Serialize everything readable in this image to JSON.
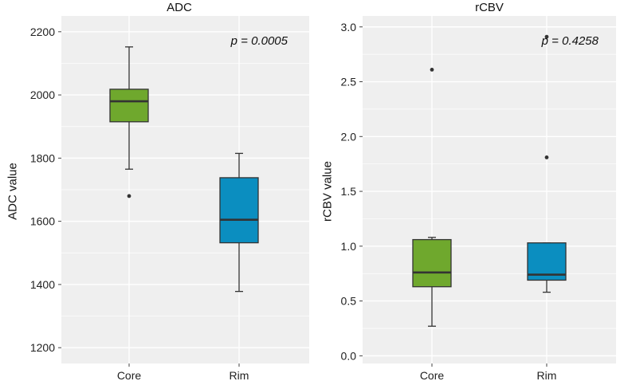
{
  "chart_data": [
    {
      "type": "box",
      "title": "ADC",
      "xlabel": "",
      "ylabel": "ADC value",
      "ylim": [
        1150,
        2250
      ],
      "yticks": [
        1200,
        1400,
        1600,
        1800,
        2000,
        2200
      ],
      "ytick_labels": [
        "1200",
        "1400",
        "1600",
        "1800",
        "2000",
        "2200"
      ],
      "categories": [
        "Core",
        "Rim"
      ],
      "annotation": "p = 0.0005",
      "boxes": [
        {
          "category": "Core",
          "whisker_low": 1765,
          "q1": 1915,
          "median": 1980,
          "q3": 2018,
          "whisker_high": 2152,
          "outliers": [
            1680
          ],
          "color": "#6fa82d"
        },
        {
          "category": "Rim",
          "whisker_low": 1378,
          "q1": 1532,
          "median": 1605,
          "q3": 1738,
          "whisker_high": 1815,
          "outliers": [],
          "color": "#0b8ec0"
        }
      ]
    },
    {
      "type": "box",
      "title": "rCBV",
      "xlabel": "",
      "ylabel": "rCBV value",
      "ylim": [
        -0.07,
        3.1
      ],
      "yticks": [
        0.0,
        0.5,
        1.0,
        1.5,
        2.0,
        2.5,
        3.0
      ],
      "ytick_labels": [
        "0.0",
        "0.5",
        "1.0",
        "1.5",
        "2.0",
        "2.5",
        "3.0"
      ],
      "categories": [
        "Core",
        "Rim"
      ],
      "annotation": "p = 0.4258",
      "boxes": [
        {
          "category": "Core",
          "whisker_low": 0.27,
          "q1": 0.63,
          "median": 0.76,
          "q3": 1.06,
          "whisker_high": 1.08,
          "outliers": [
            2.61
          ],
          "color": "#6fa82d"
        },
        {
          "category": "Rim",
          "whisker_low": 0.58,
          "q1": 0.69,
          "median": 0.74,
          "q3": 1.03,
          "whisker_high": 1.03,
          "outliers": [
            1.81,
            2.91
          ],
          "color": "#0b8ec0"
        }
      ]
    }
  ]
}
